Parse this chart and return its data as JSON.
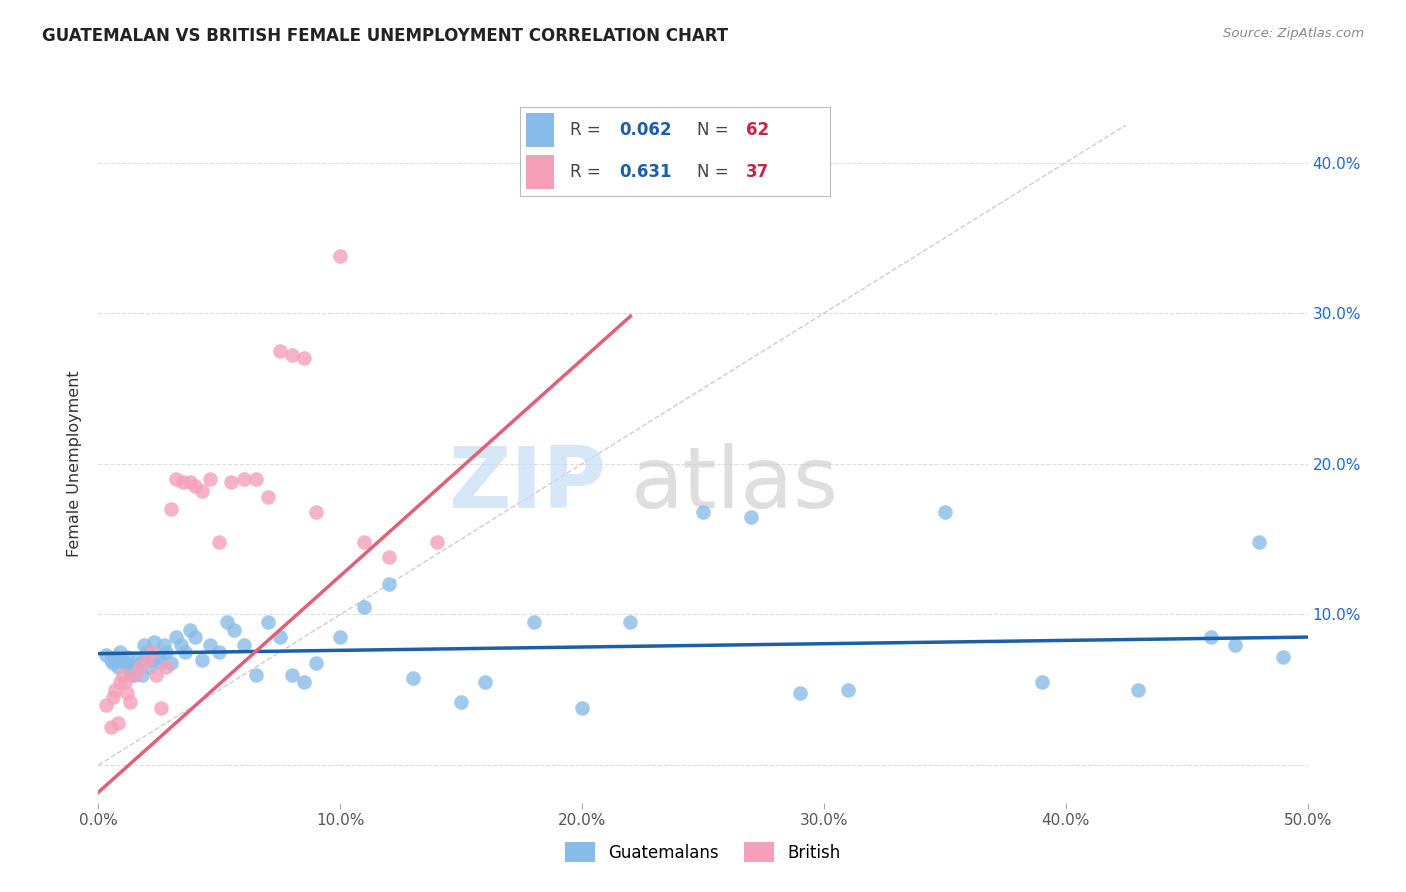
{
  "title": "GUATEMALAN VS BRITISH FEMALE UNEMPLOYMENT CORRELATION CHART",
  "source": "Source: ZipAtlas.com",
  "ylabel": "Female Unemployment",
  "xlim": [
    0.0,
    0.5
  ],
  "ylim": [
    -0.025,
    0.425
  ],
  "xticks": [
    0.0,
    0.1,
    0.2,
    0.3,
    0.4,
    0.5
  ],
  "yticks": [
    0.0,
    0.1,
    0.2,
    0.3,
    0.4
  ],
  "xticklabels": [
    "0.0%",
    "10.0%",
    "20.0%",
    "30.0%",
    "40.0%",
    "50.0%"
  ],
  "yticklabels_right": [
    "",
    "10.0%",
    "20.0%",
    "30.0%",
    "40.0%"
  ],
  "guatemalan_color": "#88bce8",
  "british_color": "#f4a0b8",
  "trend_blue": "#1a5fa8",
  "trend_pink": "#e0607a",
  "diagonal_color": "#c8c8c8",
  "watermark_zip_color": "#c5ddf5",
  "watermark_atlas_color": "#d0d0d0",
  "guatemalan_R": "0.062",
  "guatemalan_N": "62",
  "british_R": "0.631",
  "british_N": "37",
  "legend_R_color": "#1a5fa8",
  "legend_N_color": "#cc2244",
  "guatemalan_x": [
    0.003,
    0.005,
    0.006,
    0.007,
    0.008,
    0.009,
    0.01,
    0.011,
    0.012,
    0.013,
    0.014,
    0.015,
    0.016,
    0.017,
    0.018,
    0.019,
    0.02,
    0.021,
    0.022,
    0.023,
    0.025,
    0.026,
    0.027,
    0.028,
    0.03,
    0.032,
    0.034,
    0.036,
    0.038,
    0.04,
    0.043,
    0.046,
    0.05,
    0.053,
    0.056,
    0.06,
    0.065,
    0.07,
    0.075,
    0.08,
    0.085,
    0.09,
    0.1,
    0.11,
    0.12,
    0.13,
    0.15,
    0.16,
    0.18,
    0.2,
    0.22,
    0.25,
    0.27,
    0.29,
    0.31,
    0.35,
    0.39,
    0.43,
    0.46,
    0.47,
    0.48,
    0.49
  ],
  "guatemalan_y": [
    0.073,
    0.07,
    0.068,
    0.072,
    0.065,
    0.075,
    0.07,
    0.068,
    0.072,
    0.063,
    0.06,
    0.065,
    0.07,
    0.068,
    0.06,
    0.08,
    0.075,
    0.065,
    0.07,
    0.082,
    0.072,
    0.068,
    0.08,
    0.075,
    0.068,
    0.085,
    0.08,
    0.075,
    0.09,
    0.085,
    0.07,
    0.08,
    0.075,
    0.095,
    0.09,
    0.08,
    0.06,
    0.095,
    0.085,
    0.06,
    0.055,
    0.068,
    0.085,
    0.105,
    0.12,
    0.058,
    0.042,
    0.055,
    0.095,
    0.038,
    0.095,
    0.168,
    0.165,
    0.048,
    0.05,
    0.168,
    0.055,
    0.05,
    0.085,
    0.08,
    0.148,
    0.072
  ],
  "british_x": [
    0.003,
    0.005,
    0.006,
    0.007,
    0.008,
    0.009,
    0.01,
    0.011,
    0.012,
    0.013,
    0.015,
    0.017,
    0.02,
    0.022,
    0.024,
    0.026,
    0.028,
    0.03,
    0.032,
    0.035,
    0.038,
    0.04,
    0.043,
    0.046,
    0.05,
    0.055,
    0.06,
    0.065,
    0.07,
    0.075,
    0.08,
    0.085,
    0.09,
    0.1,
    0.11,
    0.12,
    0.14
  ],
  "british_y": [
    0.04,
    0.025,
    0.045,
    0.05,
    0.028,
    0.055,
    0.06,
    0.055,
    0.048,
    0.042,
    0.06,
    0.065,
    0.07,
    0.075,
    0.06,
    0.038,
    0.065,
    0.17,
    0.19,
    0.188,
    0.188,
    0.185,
    0.182,
    0.19,
    0.148,
    0.188,
    0.19,
    0.19,
    0.178,
    0.275,
    0.272,
    0.27,
    0.168,
    0.338,
    0.148,
    0.138,
    0.148
  ],
  "trend_blue_x0": 0.0,
  "trend_blue_y0": 0.074,
  "trend_blue_x1": 0.5,
  "trend_blue_y1": 0.085,
  "trend_pink_x0": 0.0,
  "trend_pink_y0": -0.018,
  "trend_pink_x1": 0.22,
  "trend_pink_y1": 0.298
}
